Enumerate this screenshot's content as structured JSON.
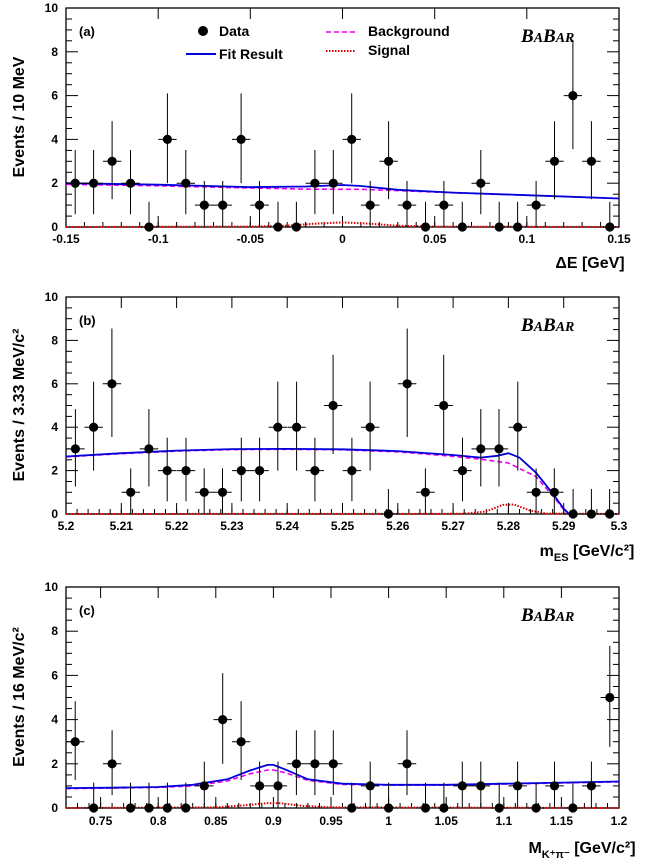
{
  "legend": {
    "data": "Data",
    "fit": "Fit Result",
    "background": "Background",
    "signal": "Signal"
  },
  "colors": {
    "data": "#000000",
    "fit": "#0000dd",
    "background": "#ee00ee",
    "signal": "#dd0000"
  },
  "experiment_logo": "BABAR",
  "chart_data": [
    {
      "type": "scatter",
      "panel": "(a)",
      "ylabel": "Events / 10 MeV",
      "xlabel": "ΔE [GeV]",
      "xlim": [
        -0.15,
        0.15
      ],
      "ylim": [
        0,
        10
      ],
      "xticks": [
        -0.15,
        -0.1,
        -0.05,
        0,
        0.05,
        0.1,
        0.15
      ],
      "xtick_labels": [
        "-0.15",
        "-0.1",
        "-0.05",
        "0",
        "0.05",
        "0.1",
        "0.15"
      ],
      "yticks": [
        0,
        2,
        4,
        6,
        8,
        10
      ],
      "ytick_labels": [
        "0",
        "2",
        "4",
        "6",
        "8",
        "10"
      ],
      "bin_half_width": 0.005,
      "data": {
        "x": [
          -0.145,
          -0.135,
          -0.125,
          -0.115,
          -0.105,
          -0.095,
          -0.085,
          -0.075,
          -0.065,
          -0.055,
          -0.045,
          -0.035,
          -0.025,
          -0.015,
          -0.005,
          0.005,
          0.015,
          0.025,
          0.035,
          0.045,
          0.055,
          0.065,
          0.075,
          0.085,
          0.095,
          0.105,
          0.115,
          0.125,
          0.135,
          0.145
        ],
        "y": [
          2,
          2,
          3,
          2,
          0,
          4,
          2,
          1,
          1,
          4,
          1,
          0,
          0,
          2,
          2,
          4,
          1,
          3,
          1,
          0,
          1,
          0,
          2,
          0,
          0,
          1,
          3,
          6,
          3,
          0
        ]
      },
      "series": [
        {
          "name": "Fit Result",
          "x": [
            -0.15,
            -0.1,
            -0.05,
            -0.02,
            0.0,
            0.01,
            0.03,
            0.06,
            0.1,
            0.15
          ],
          "y": [
            2.0,
            1.93,
            1.82,
            1.85,
            1.92,
            1.87,
            1.7,
            1.57,
            1.45,
            1.3
          ]
        },
        {
          "name": "Background",
          "x": [
            -0.15,
            -0.1,
            -0.05,
            -0.02,
            0.0,
            0.01,
            0.03,
            0.06,
            0.1,
            0.15
          ],
          "y": [
            1.95,
            1.88,
            1.78,
            1.73,
            1.72,
            1.72,
            1.66,
            1.56,
            1.45,
            1.3
          ]
        },
        {
          "name": "Signal",
          "x": [
            -0.15,
            -0.05,
            -0.03,
            -0.015,
            0.0,
            0.015,
            0.03,
            0.05,
            0.15
          ],
          "y": [
            0.0,
            0.02,
            0.06,
            0.15,
            0.21,
            0.15,
            0.06,
            0.02,
            0.0
          ]
        }
      ]
    },
    {
      "type": "scatter",
      "panel": "(b)",
      "ylabel": "Events / 3.33 MeV/c²",
      "xlabel": "m_ES [GeV/c²]",
      "xlim": [
        5.2,
        5.3
      ],
      "ylim": [
        0,
        10
      ],
      "xticks": [
        5.2,
        5.21,
        5.22,
        5.23,
        5.24,
        5.25,
        5.26,
        5.27,
        5.28,
        5.29,
        5.3
      ],
      "xtick_labels": [
        "5.2",
        "5.21",
        "5.22",
        "5.23",
        "5.24",
        "5.25",
        "5.26",
        "5.27",
        "5.28",
        "5.29",
        "5.3"
      ],
      "yticks": [
        0,
        2,
        4,
        6,
        8,
        10
      ],
      "ytick_labels": [
        "0",
        "2",
        "4",
        "6",
        "8",
        "10"
      ],
      "bin_half_width": 0.00167,
      "data": {
        "x": [
          5.2017,
          5.205,
          5.2083,
          5.2117,
          5.215,
          5.2183,
          5.2217,
          5.225,
          5.2283,
          5.2317,
          5.235,
          5.2383,
          5.2417,
          5.245,
          5.2483,
          5.2517,
          5.255,
          5.2583,
          5.2617,
          5.265,
          5.2683,
          5.2717,
          5.275,
          5.2783,
          5.2817,
          5.285,
          5.2883,
          5.2917,
          5.295,
          5.2983
        ],
        "y": [
          3,
          4,
          6,
          1,
          3,
          2,
          2,
          1,
          1,
          2,
          2,
          4,
          4,
          2,
          5,
          2,
          4,
          0,
          6,
          1,
          5,
          2,
          3,
          3,
          4,
          1,
          1,
          0,
          0,
          0
        ]
      },
      "series": [
        {
          "name": "Fit Result",
          "x": [
            5.2,
            5.21,
            5.22,
            5.23,
            5.24,
            5.25,
            5.26,
            5.27,
            5.275,
            5.278,
            5.28,
            5.282,
            5.285,
            5.288,
            5.29,
            5.291
          ],
          "y": [
            2.65,
            2.8,
            2.92,
            2.99,
            3.0,
            2.98,
            2.9,
            2.72,
            2.6,
            2.68,
            2.8,
            2.6,
            1.9,
            0.95,
            0.25,
            0.0
          ]
        },
        {
          "name": "Background",
          "x": [
            5.2,
            5.21,
            5.22,
            5.23,
            5.24,
            5.25,
            5.26,
            5.27,
            5.275,
            5.28,
            5.285,
            5.288,
            5.29,
            5.291
          ],
          "y": [
            2.63,
            2.78,
            2.9,
            2.97,
            2.98,
            2.96,
            2.86,
            2.66,
            2.52,
            2.35,
            1.72,
            0.85,
            0.2,
            0.0
          ]
        },
        {
          "name": "Signal",
          "x": [
            5.2,
            5.272,
            5.276,
            5.279,
            5.281,
            5.284,
            5.287,
            5.3
          ],
          "y": [
            0.0,
            0.01,
            0.12,
            0.42,
            0.44,
            0.15,
            0.02,
            0.0
          ]
        }
      ]
    },
    {
      "type": "scatter",
      "panel": "(c)",
      "ylabel": "Events / 16 MeV/c²",
      "xlabel": "M_K⁺π⁻ [GeV/c²]",
      "xlim": [
        0.72,
        1.2
      ],
      "ylim": [
        0,
        10
      ],
      "xticks": [
        0.75,
        0.8,
        0.85,
        0.9,
        0.95,
        1.0,
        1.05,
        1.1,
        1.15,
        1.2
      ],
      "xtick_labels": [
        "0.75",
        "0.8",
        "0.85",
        "0.9",
        "0.95",
        "1",
        "1.05",
        "1.1",
        "1.15",
        "1.2"
      ],
      "yticks": [
        0,
        2,
        4,
        6,
        8,
        10
      ],
      "ytick_labels": [
        "0",
        "2",
        "4",
        "6",
        "8",
        "10"
      ],
      "bin_half_width": 0.008,
      "data": {
        "x": [
          0.728,
          0.744,
          0.76,
          0.776,
          0.792,
          0.808,
          0.824,
          0.84,
          0.856,
          0.872,
          0.888,
          0.904,
          0.92,
          0.936,
          0.952,
          0.968,
          0.984,
          1.0,
          1.016,
          1.032,
          1.048,
          1.064,
          1.08,
          1.096,
          1.112,
          1.128,
          1.144,
          1.16,
          1.176,
          1.192
        ],
        "y": [
          3,
          0,
          2,
          0,
          0,
          0,
          0,
          1,
          4,
          3,
          1,
          1,
          2,
          2,
          2,
          0,
          1,
          0,
          2,
          0,
          0,
          1,
          1,
          0,
          1,
          0,
          1,
          0,
          1,
          5
        ]
      },
      "series": [
        {
          "name": "Fit Result",
          "x": [
            0.72,
            0.76,
            0.8,
            0.83,
            0.86,
            0.88,
            0.895,
            0.9,
            0.91,
            0.93,
            0.96,
            1.0,
            1.05,
            1.1,
            1.15,
            1.2
          ],
          "y": [
            0.9,
            0.92,
            0.95,
            1.05,
            1.3,
            1.7,
            1.95,
            1.95,
            1.75,
            1.3,
            1.1,
            1.05,
            1.05,
            1.1,
            1.15,
            1.2
          ]
        },
        {
          "name": "Background",
          "x": [
            0.72,
            0.76,
            0.8,
            0.83,
            0.86,
            0.88,
            0.895,
            0.9,
            0.91,
            0.93,
            0.96,
            1.0,
            1.05,
            1.1,
            1.15,
            1.2
          ],
          "y": [
            0.88,
            0.9,
            0.93,
            1.0,
            1.22,
            1.55,
            1.72,
            1.72,
            1.6,
            1.25,
            1.07,
            1.03,
            1.03,
            1.08,
            1.13,
            1.18
          ]
        },
        {
          "name": "Signal",
          "x": [
            0.72,
            0.85,
            0.875,
            0.895,
            0.905,
            0.925,
            0.95,
            1.2
          ],
          "y": [
            0.0,
            0.03,
            0.12,
            0.22,
            0.22,
            0.1,
            0.03,
            0.0
          ]
        }
      ]
    }
  ]
}
